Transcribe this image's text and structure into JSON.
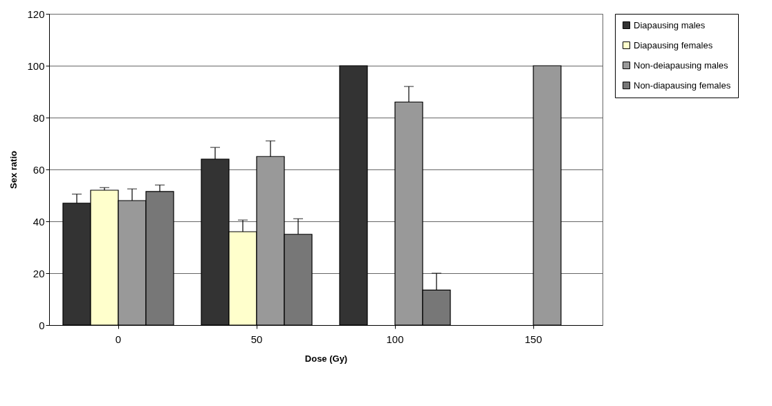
{
  "chart_data": {
    "type": "bar",
    "xlabel": "Dose (Gy)",
    "ylabel": "Sex ratio",
    "categories": [
      "0",
      "50",
      "100",
      "150"
    ],
    "series": [
      {
        "name": "Diapausing males",
        "color": "#333333",
        "values": [
          47,
          64,
          100,
          0
        ],
        "errors": [
          [
            47,
            50.5
          ],
          [
            64,
            68.5
          ],
          null,
          null
        ]
      },
      {
        "name": "Diapausing females",
        "color": "#ffffcc",
        "values": [
          52,
          36,
          0,
          0
        ],
        "errors": [
          [
            52,
            53
          ],
          [
            36,
            40.5
          ],
          null,
          null
        ]
      },
      {
        "name": "Non-deiapausing males",
        "color": "#999999",
        "values": [
          48,
          65,
          86,
          100
        ],
        "errors": [
          [
            48,
            52.5
          ],
          [
            65,
            71
          ],
          [
            86,
            92
          ],
          null
        ]
      },
      {
        "name": "Non-diapausing females",
        "color": "#777777",
        "values": [
          51.5,
          35,
          13.5,
          0
        ],
        "errors": [
          [
            51.5,
            54
          ],
          [
            35,
            41
          ],
          [
            13.5,
            20
          ],
          null
        ]
      }
    ],
    "ylim": [
      0,
      120
    ],
    "yticks": [
      0,
      20,
      40,
      60,
      80,
      100,
      120
    ],
    "grid": "y",
    "legend": "right"
  }
}
